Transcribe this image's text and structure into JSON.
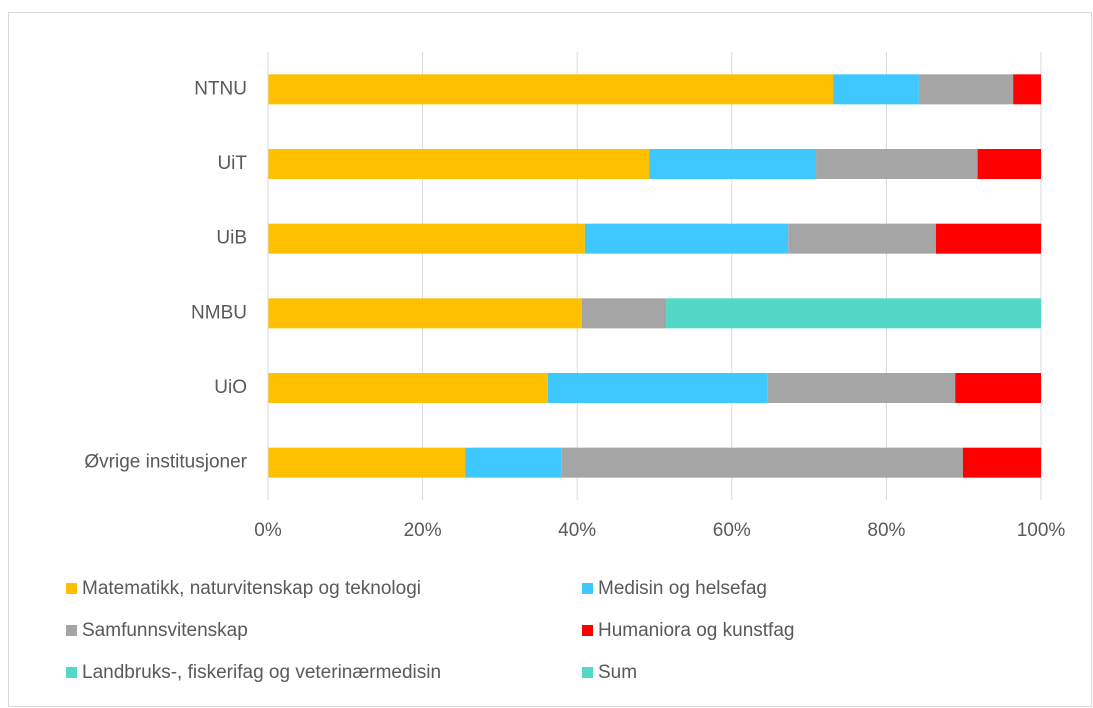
{
  "chart_data": {
    "type": "stacked-bar-horizontal",
    "categories": [
      "NTNU",
      "UiT",
      "UiB",
      "NMBU",
      "UiO",
      "Øvrige institusjoner"
    ],
    "series": [
      {
        "name": "Matematikk, naturvitenskap og teknologi",
        "color": "#ffc000",
        "values": [
          73.1,
          49.3,
          41.0,
          40.6,
          36.2,
          25.5
        ]
      },
      {
        "name": "Medisin og helsefag",
        "color": "#3ec8ff",
        "values": [
          11.1,
          21.6,
          26.3,
          0,
          28.4,
          12.5
        ]
      },
      {
        "name": "Samfunnsvitenskap",
        "color": "#a5a5a5",
        "values": [
          12.2,
          20.9,
          19.1,
          10.9,
          24.3,
          51.9
        ]
      },
      {
        "name": "Humaniora og kunstfag",
        "color": "#ff0000",
        "values": [
          3.6,
          8.2,
          13.6,
          0,
          11.1,
          10.1
        ]
      },
      {
        "name": "Landbruks-, fiskerifag og veterinærmedisin",
        "color": "#53d8c8",
        "values": [
          0,
          0,
          0,
          48.5,
          0,
          0
        ]
      },
      {
        "name": "Sum",
        "color": "#53d8c8",
        "values": [
          null,
          null,
          null,
          null,
          null,
          null
        ]
      }
    ],
    "xlim": [
      0,
      100
    ],
    "xticks": [
      {
        "value": 0,
        "label": "0%"
      },
      {
        "value": 20,
        "label": "20%"
      },
      {
        "value": 40,
        "label": "40%"
      },
      {
        "value": 60,
        "label": "60%"
      },
      {
        "value": 80,
        "label": "80%"
      },
      {
        "value": 100,
        "label": "100%"
      }
    ],
    "grid": true,
    "legend": "bottom"
  }
}
